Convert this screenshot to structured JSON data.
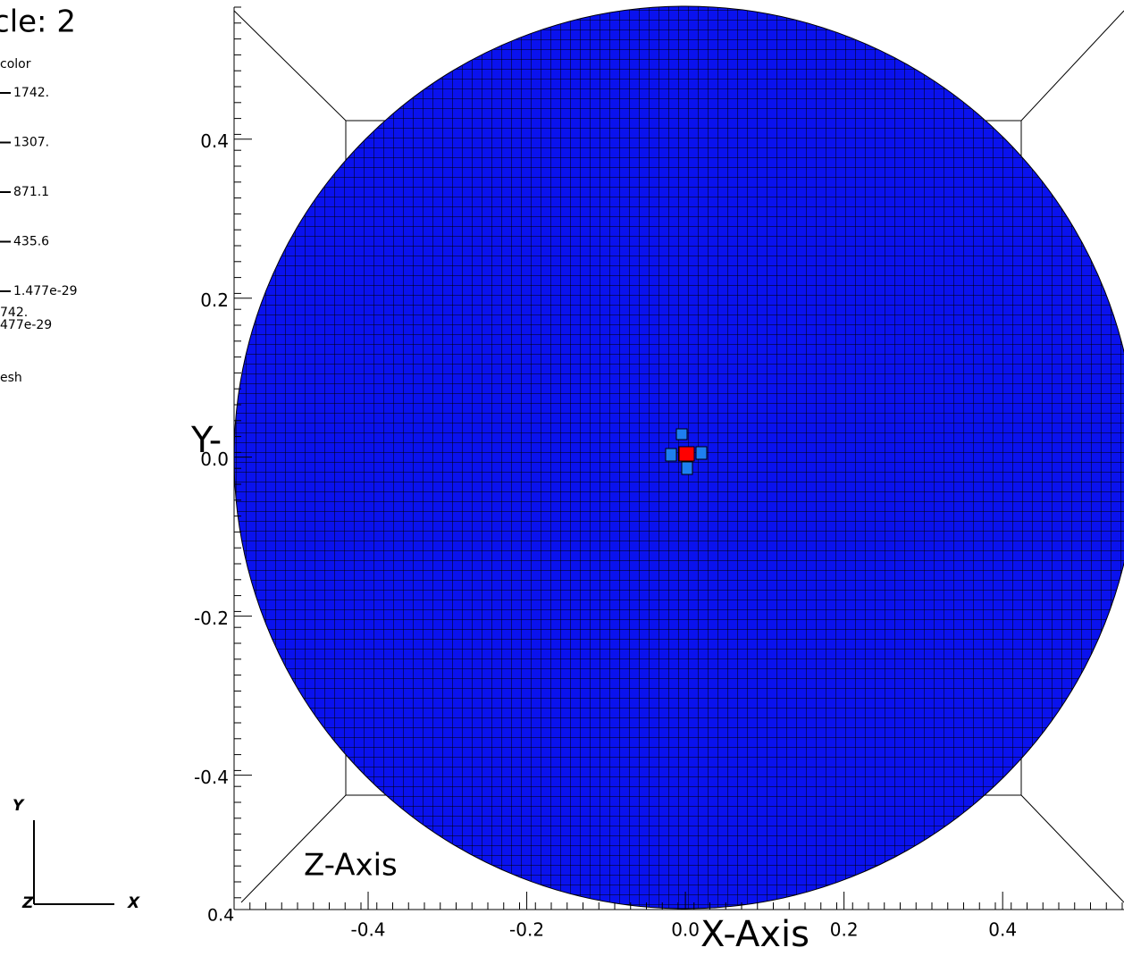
{
  "title": "cle: 2",
  "legend": {
    "label": "color",
    "ticks": [
      "1742.",
      "1307.",
      "871.1",
      "435.6",
      "1.477e-29"
    ],
    "max": "742.",
    "min": "477e-29"
  },
  "mesh_label": "esh",
  "x_axis": {
    "title": "X-Axis",
    "lim": [
      -0.569,
      0.553
    ],
    "ticks": [
      -0.4,
      -0.2,
      {
        "value": 0,
        "label": "0.0"
      },
      0.2,
      0.4
    ]
  },
  "y_axis": {
    "title": "Y-",
    "lim": [
      -0.569,
      0.566
    ],
    "ticks": [
      0.4,
      0.2,
      {
        "value": 0,
        "label": "0.0"
      },
      -0.2,
      -0.4
    ]
  },
  "z_axis": {
    "title": "Z-Axis",
    "tick": "0.4"
  },
  "triad": {
    "y": "Y",
    "z": "Z",
    "x": "X"
  }
}
